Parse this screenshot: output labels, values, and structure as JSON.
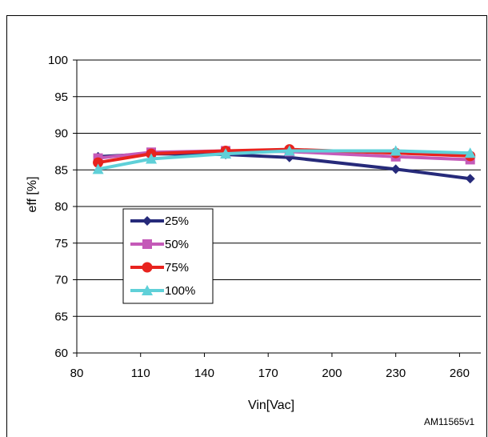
{
  "chart_data": {
    "type": "line",
    "title": "",
    "xlabel": "Vin[Vac]",
    "ylabel": "eff [%]",
    "xlim": [
      80,
      270
    ],
    "ylim": [
      60,
      100
    ],
    "x_ticks": [
      80,
      110,
      140,
      170,
      200,
      230,
      260
    ],
    "y_ticks": [
      60,
      65,
      70,
      75,
      80,
      85,
      90,
      95,
      100
    ],
    "grid": "horizontal",
    "legend_position": "left",
    "x": [
      90,
      115,
      150,
      180,
      230,
      265
    ],
    "series": [
      {
        "name": "25%",
        "color": "#262a7a",
        "marker": "diamond",
        "values": [
          86.8,
          87.2,
          87.1,
          86.7,
          85.1,
          83.8
        ]
      },
      {
        "name": "50%",
        "color": "#c45ab8",
        "marker": "square",
        "values": [
          86.6,
          87.4,
          87.6,
          87.5,
          86.8,
          86.4
        ]
      },
      {
        "name": "75%",
        "color": "#e8231e",
        "marker": "circle",
        "values": [
          86.0,
          87.2,
          87.6,
          87.8,
          87.3,
          86.9
        ]
      },
      {
        "name": "100%",
        "color": "#5fd0d8",
        "marker": "triangle",
        "values": [
          85.1,
          86.5,
          87.2,
          87.6,
          87.6,
          87.3
        ]
      }
    ]
  },
  "figure_code": "AM11565v1"
}
